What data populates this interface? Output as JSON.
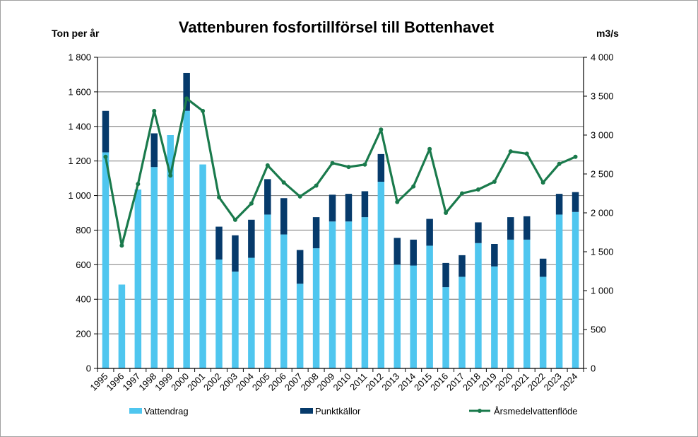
{
  "chart_data": {
    "type": "bar",
    "title": "Vattenburen fosfortillförsel till Bottenhavet",
    "ylabel": "Ton per år",
    "y2label": "m3/s",
    "ylim": [
      0,
      1800
    ],
    "y2lim": [
      0,
      4000
    ],
    "yticks": [
      "0",
      "200",
      "400",
      "600",
      "800",
      "1 000",
      "1 200",
      "1 400",
      "1 600",
      "1 800"
    ],
    "y2ticks": [
      "0",
      "500",
      "1 000",
      "1 500",
      "2 000",
      "2 500",
      "3 000",
      "3 500",
      "4 000"
    ],
    "grid": true,
    "stacked": true,
    "legend_position": "bottom",
    "categories": [
      "1995",
      "1996",
      "1997",
      "1998",
      "1999",
      "2000",
      "2001",
      "2002",
      "2003",
      "2004",
      "2005",
      "2006",
      "2007",
      "2008",
      "2009",
      "2010",
      "2011",
      "2012",
      "2013",
      "2014",
      "2015",
      "2016",
      "2017",
      "2018",
      "2019",
      "2020",
      "2021",
      "2022",
      "2023",
      "2024"
    ],
    "series": [
      {
        "name": "Vattendrag",
        "type": "bar",
        "axis": "left",
        "color": "#4fc6ef",
        "values": [
          1250,
          485,
          1035,
          1165,
          1350,
          1490,
          1180,
          630,
          560,
          640,
          890,
          775,
          490,
          695,
          850,
          850,
          875,
          1080,
          600,
          595,
          710,
          470,
          530,
          725,
          590,
          745,
          745,
          530,
          890,
          905
        ]
      },
      {
        "name": "Punktkällor",
        "type": "bar",
        "axis": "left",
        "color": "#063a6b",
        "values": [
          240,
          0,
          0,
          195,
          0,
          220,
          0,
          190,
          210,
          220,
          205,
          210,
          195,
          180,
          155,
          160,
          150,
          160,
          155,
          150,
          155,
          140,
          125,
          120,
          130,
          130,
          135,
          105,
          120,
          115
        ]
      },
      {
        "name": "Årsmedelvattenflöde",
        "type": "line",
        "axis": "right",
        "color": "#1a7a4c",
        "values": [
          2720,
          1580,
          2370,
          3310,
          2480,
          3470,
          3310,
          2200,
          1910,
          2120,
          2610,
          2390,
          2210,
          2350,
          2640,
          2590,
          2620,
          3070,
          2140,
          2340,
          2820,
          2000,
          2250,
          2300,
          2400,
          2790,
          2760,
          2390,
          2630,
          2720
        ]
      }
    ]
  }
}
